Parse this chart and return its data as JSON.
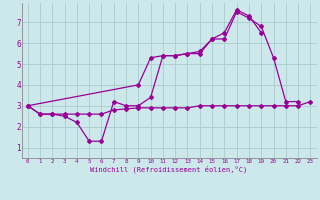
{
  "background_color": "#cce8ea",
  "grid_color": "#aacccc",
  "line_color": "#990099",
  "xlabel": "Windchill (Refroidissement éolien,°C)",
  "xlim": [
    -0.5,
    23.5
  ],
  "ylim": [
    0.5,
    7.9
  ],
  "xticks": [
    0,
    1,
    2,
    3,
    4,
    5,
    6,
    7,
    8,
    9,
    10,
    11,
    12,
    13,
    14,
    15,
    16,
    17,
    18,
    19,
    20,
    21,
    22,
    23
  ],
  "yticks": [
    1,
    2,
    3,
    4,
    5,
    6,
    7
  ],
  "line1_x": [
    0,
    1,
    2,
    3,
    4,
    5,
    6,
    7,
    8,
    9,
    10,
    11,
    12,
    13,
    14,
    15,
    16,
    17,
    18,
    19,
    20,
    21,
    22,
    23
  ],
  "line1_y": [
    3.0,
    2.6,
    2.6,
    2.6,
    2.6,
    2.6,
    2.6,
    2.8,
    2.85,
    2.9,
    2.9,
    2.9,
    2.9,
    2.9,
    3.0,
    3.0,
    3.0,
    3.0,
    3.0,
    3.0,
    3.0,
    3.0,
    3.0,
    3.2
  ],
  "line2_x": [
    0,
    1,
    2,
    3,
    4,
    5,
    6,
    7,
    8,
    9,
    10,
    11,
    12,
    13,
    14,
    15,
    16,
    17,
    18,
    19,
    20,
    21,
    22
  ],
  "line2_y": [
    3.0,
    2.6,
    2.6,
    2.5,
    2.2,
    1.3,
    1.3,
    3.2,
    3.0,
    3.0,
    3.4,
    5.4,
    5.4,
    5.5,
    5.6,
    6.2,
    6.2,
    7.5,
    7.2,
    6.8,
    5.3,
    3.2,
    3.2
  ],
  "line3_x": [
    0,
    9,
    10,
    11,
    12,
    13,
    14,
    15,
    16,
    17,
    18,
    19
  ],
  "line3_y": [
    3.0,
    4.0,
    5.3,
    5.4,
    5.4,
    5.5,
    5.5,
    6.2,
    6.5,
    7.6,
    7.3,
    6.5
  ]
}
